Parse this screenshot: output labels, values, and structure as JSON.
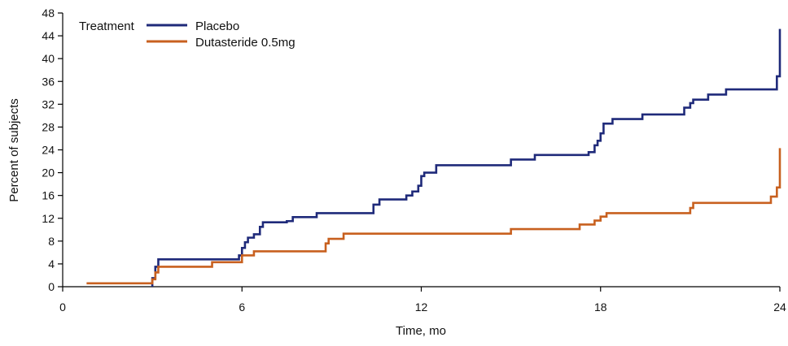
{
  "chart_data": {
    "type": "line",
    "step": true,
    "xlabel": "Time, mo",
    "ylabel": "Percent of subjects",
    "xlim": [
      0,
      24
    ],
    "ylim": [
      0,
      48
    ],
    "xticks": [
      0,
      6,
      12,
      18,
      24
    ],
    "yticks": [
      0,
      4,
      8,
      12,
      16,
      20,
      24,
      28,
      32,
      36,
      40,
      44,
      48
    ],
    "grid": false,
    "legend": {
      "title": "Treatment",
      "position": "top-left"
    },
    "series": [
      {
        "name": "Placebo",
        "color": "#1f2a7a",
        "points": [
          [
            3.0,
            0.0
          ],
          [
            3.0,
            1.5
          ],
          [
            3.1,
            1.5
          ],
          [
            3.1,
            3.5
          ],
          [
            3.2,
            3.5
          ],
          [
            3.2,
            4.8
          ],
          [
            5.9,
            4.8
          ],
          [
            5.9,
            5.5
          ],
          [
            6.0,
            5.5
          ],
          [
            6.0,
            6.8
          ],
          [
            6.1,
            6.8
          ],
          [
            6.1,
            7.8
          ],
          [
            6.2,
            7.8
          ],
          [
            6.2,
            8.6
          ],
          [
            6.4,
            8.6
          ],
          [
            6.4,
            9.2
          ],
          [
            6.6,
            9.2
          ],
          [
            6.6,
            10.5
          ],
          [
            6.7,
            10.5
          ],
          [
            6.7,
            11.3
          ],
          [
            7.5,
            11.3
          ],
          [
            7.5,
            11.5
          ],
          [
            7.7,
            11.5
          ],
          [
            7.7,
            12.2
          ],
          [
            8.5,
            12.2
          ],
          [
            8.5,
            12.9
          ],
          [
            10.4,
            12.9
          ],
          [
            10.4,
            14.4
          ],
          [
            10.6,
            14.4
          ],
          [
            10.6,
            15.3
          ],
          [
            11.5,
            15.3
          ],
          [
            11.5,
            16.0
          ],
          [
            11.7,
            16.0
          ],
          [
            11.7,
            16.7
          ],
          [
            11.9,
            16.7
          ],
          [
            11.9,
            17.7
          ],
          [
            12.0,
            17.7
          ],
          [
            12.0,
            19.4
          ],
          [
            12.1,
            19.4
          ],
          [
            12.1,
            20.0
          ],
          [
            12.5,
            20.0
          ],
          [
            12.5,
            21.3
          ],
          [
            15.0,
            21.3
          ],
          [
            15.0,
            22.3
          ],
          [
            15.8,
            22.3
          ],
          [
            15.8,
            23.1
          ],
          [
            17.6,
            23.1
          ],
          [
            17.6,
            23.6
          ],
          [
            17.8,
            23.6
          ],
          [
            17.8,
            24.8
          ],
          [
            17.9,
            24.8
          ],
          [
            17.9,
            25.6
          ],
          [
            18.0,
            25.6
          ],
          [
            18.0,
            26.9
          ],
          [
            18.1,
            26.9
          ],
          [
            18.1,
            28.6
          ],
          [
            18.4,
            28.6
          ],
          [
            18.4,
            29.4
          ],
          [
            19.4,
            29.4
          ],
          [
            19.4,
            30.2
          ],
          [
            20.8,
            30.2
          ],
          [
            20.8,
            31.4
          ],
          [
            21.0,
            31.4
          ],
          [
            21.0,
            32.2
          ],
          [
            21.1,
            32.2
          ],
          [
            21.1,
            32.8
          ],
          [
            21.6,
            32.8
          ],
          [
            21.6,
            33.7
          ],
          [
            22.2,
            33.7
          ],
          [
            22.2,
            34.6
          ],
          [
            23.9,
            34.6
          ],
          [
            23.9,
            36.9
          ],
          [
            24.0,
            36.9
          ],
          [
            24.0,
            45.2
          ]
        ]
      },
      {
        "name": "Dutasteride 0.5mg",
        "color": "#c8601f",
        "points": [
          [
            0.8,
            0.6
          ],
          [
            3.0,
            0.6
          ],
          [
            3.0,
            1.3
          ],
          [
            3.1,
            1.3
          ],
          [
            3.1,
            2.5
          ],
          [
            3.2,
            2.5
          ],
          [
            3.2,
            3.5
          ],
          [
            5.0,
            3.5
          ],
          [
            5.0,
            4.3
          ],
          [
            6.0,
            4.3
          ],
          [
            6.0,
            5.5
          ],
          [
            6.4,
            5.5
          ],
          [
            6.4,
            6.2
          ],
          [
            8.8,
            6.2
          ],
          [
            8.8,
            7.6
          ],
          [
            8.9,
            7.6
          ],
          [
            8.9,
            8.4
          ],
          [
            9.4,
            8.4
          ],
          [
            9.4,
            9.3
          ],
          [
            15.0,
            9.3
          ],
          [
            15.0,
            10.1
          ],
          [
            17.3,
            10.1
          ],
          [
            17.3,
            10.9
          ],
          [
            17.8,
            10.9
          ],
          [
            17.8,
            11.6
          ],
          [
            18.0,
            11.6
          ],
          [
            18.0,
            12.3
          ],
          [
            18.2,
            12.3
          ],
          [
            18.2,
            12.9
          ],
          [
            21.0,
            12.9
          ],
          [
            21.0,
            13.8
          ],
          [
            21.1,
            13.8
          ],
          [
            21.1,
            14.7
          ],
          [
            23.7,
            14.7
          ],
          [
            23.7,
            15.8
          ],
          [
            23.9,
            15.8
          ],
          [
            23.9,
            17.4
          ],
          [
            24.0,
            17.4
          ],
          [
            24.0,
            24.3
          ]
        ]
      }
    ]
  }
}
